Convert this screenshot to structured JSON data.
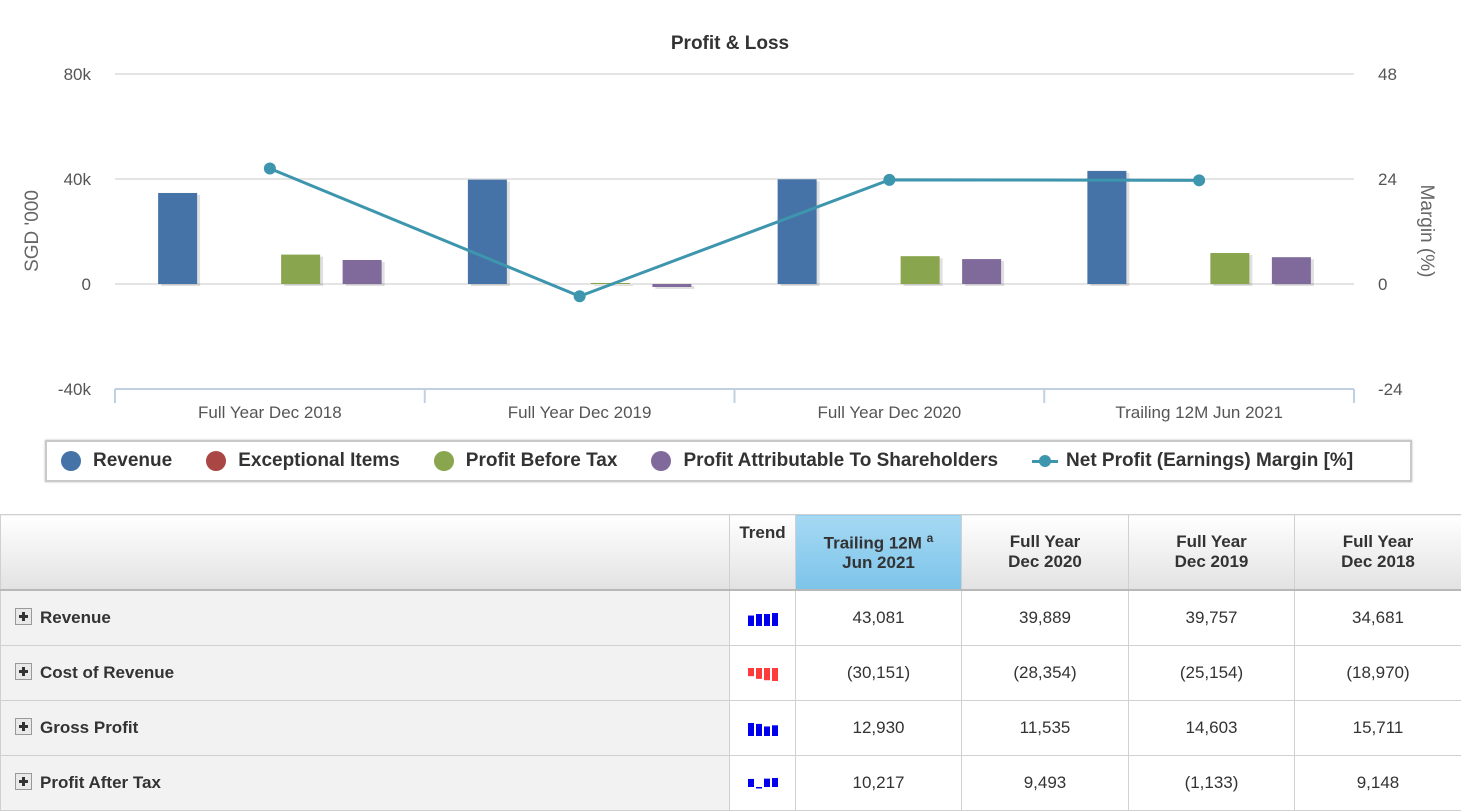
{
  "chart_data": {
    "type": "bar",
    "title": "Profit & Loss",
    "ylabel": "SGD '000",
    "y2label": "Margin (%)",
    "ylim": [
      -40000,
      80000
    ],
    "y2lim": [
      -24,
      48
    ],
    "yticks": [
      "80k",
      "40k",
      "0",
      "-40k"
    ],
    "y2ticks": [
      "48",
      "24",
      "0",
      "-24"
    ],
    "categories": [
      "Full Year Dec 2018",
      "Full Year Dec 2019",
      "Full Year Dec 2020",
      "Trailing 12M Jun 2021"
    ],
    "series": [
      {
        "name": "Revenue",
        "color": "#4572a7",
        "type": "bar",
        "values": [
          34681,
          39757,
          39889,
          43081
        ]
      },
      {
        "name": "Exceptional Items",
        "color": "#aa4643",
        "type": "bar",
        "values": [
          0,
          0,
          0,
          0
        ]
      },
      {
        "name": "Profit Before Tax",
        "color": "#89a54e",
        "type": "bar",
        "values": [
          11200,
          400,
          10600,
          11800
        ]
      },
      {
        "name": "Profit Attributable To Shareholders",
        "color": "#80699b",
        "type": "bar",
        "values": [
          9148,
          -1133,
          9493,
          10217
        ]
      },
      {
        "name": "Net Profit (Earnings) Margin [%]",
        "color": "#3d96ae",
        "type": "line",
        "values": [
          26.4,
          -2.8,
          23.8,
          23.7
        ]
      }
    ],
    "legend_position": "bottom",
    "grid": true
  },
  "table": {
    "headers": {
      "trend": "Trend",
      "col1_line1": "Trailing 12M",
      "col1_sup": "a",
      "col1_line2": "Jun 2021",
      "col2_line1": "Full Year",
      "col2_line2": "Dec 2020",
      "col3_line1": "Full Year",
      "col3_line2": "Dec 2019",
      "col4_line1": "Full Year",
      "col4_line2": "Dec 2018"
    },
    "rows": [
      {
        "label": "Revenue",
        "values": [
          "43,081",
          "39,889",
          "39,757",
          "34,681"
        ],
        "trend_color": "#0000ee"
      },
      {
        "label": "Cost of Revenue",
        "values": [
          "(30,151)",
          "(28,354)",
          "(25,154)",
          "(18,970)"
        ],
        "trend_color": "#ff3b3b"
      },
      {
        "label": "Gross Profit",
        "values": [
          "12,930",
          "11,535",
          "14,603",
          "15,711"
        ],
        "trend_color": "#0000ee"
      },
      {
        "label": "Profit After Tax",
        "values": [
          "10,217",
          "9,493",
          "(1,133)",
          "9,148"
        ],
        "trend_color": "#0000ee"
      }
    ]
  }
}
